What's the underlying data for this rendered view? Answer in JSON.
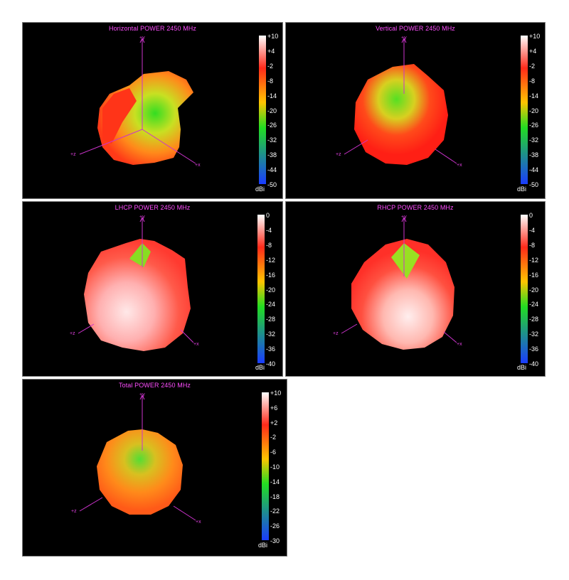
{
  "colors": {
    "background": "#000000",
    "title": "#ff4dff",
    "axis": "#cc33cc",
    "scale_top": "#ffffff",
    "scale_red": "#ff2a1a",
    "scale_yellow": "#ffc400",
    "scale_green": "#22dd22",
    "scale_blue": "#1a3cff"
  },
  "chart_data": [
    {
      "type": "3d-radiation-pattern",
      "title": "Horizontal POWER 2450  MHz",
      "unit": "dBi",
      "scale_ticks": [
        "+10",
        "+4",
        "-2",
        "-8",
        "-14",
        "-20",
        "-26",
        "-32",
        "-38",
        "-44",
        "-50"
      ],
      "range": [
        -50,
        10
      ],
      "axes": [
        "+y",
        "+z",
        "+x"
      ]
    },
    {
      "type": "3d-radiation-pattern",
      "title": "Vertical POWER 2450  MHz",
      "unit": "dBi",
      "scale_ticks": [
        "+10",
        "+4",
        "-2",
        "-8",
        "-14",
        "-20",
        "-26",
        "-32",
        "-38",
        "-44",
        "-50"
      ],
      "range": [
        -50,
        10
      ],
      "axes": [
        "+y",
        "+z",
        "+x"
      ]
    },
    {
      "type": "3d-radiation-pattern",
      "title": "LHCP POWER 2450  MHz",
      "unit": "dBi",
      "scale_ticks": [
        "0",
        "-4",
        "-8",
        "-12",
        "-16",
        "-20",
        "-24",
        "-28",
        "-32",
        "-36",
        "-40"
      ],
      "range": [
        -40,
        0
      ],
      "axes": [
        "+y",
        "+z",
        "+x"
      ]
    },
    {
      "type": "3d-radiation-pattern",
      "title": "RHCP POWER 2450  MHz",
      "unit": "dBi",
      "scale_ticks": [
        "0",
        "-4",
        "-8",
        "-12",
        "-16",
        "-20",
        "-24",
        "-28",
        "-32",
        "-36",
        "-40"
      ],
      "range": [
        -40,
        0
      ],
      "axes": [
        "+y",
        "+z",
        "+x"
      ]
    },
    {
      "type": "3d-radiation-pattern",
      "title": "Total POWER 2450  MHz",
      "unit": "dBi",
      "scale_ticks": [
        "+10",
        "+6",
        "+2",
        "-2",
        "-6",
        "-10",
        "-14",
        "-18",
        "-22",
        "-26",
        "-30"
      ],
      "range": [
        -30,
        10
      ],
      "axes": [
        "+y",
        "+z",
        "+x"
      ]
    }
  ]
}
